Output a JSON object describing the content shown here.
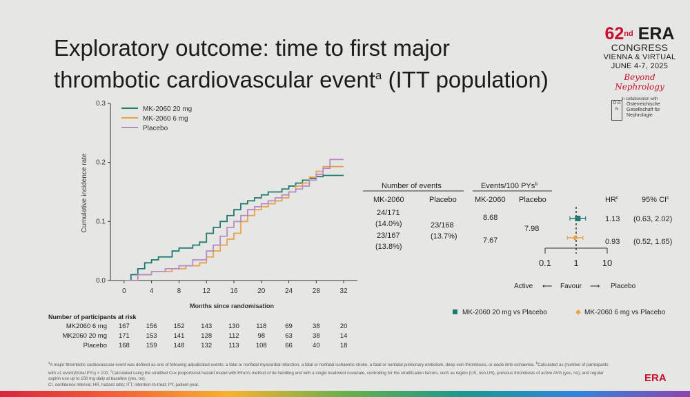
{
  "title": {
    "line1": "Exploratory outcome: time to first major",
    "line2": "thrombotic cardiovascular event",
    "sup": "a",
    "line2_end": " (ITT population)"
  },
  "logo": {
    "edition": "62",
    "edition_suffix": "nd",
    "era": "ERA",
    "congress": "CONGRESS",
    "city": "VIENNA & VIRTUAL",
    "dates": "JUNE 4-7, 2025",
    "tagline": "Beyond Nephrology",
    "collab": "in collaboration with",
    "partner_letters": "Ö G N",
    "partner": "Österreichische Gesellschaft für Nephrologie",
    "bottom": "ERA"
  },
  "km": {
    "ylabel": "Cumulative incidence rate",
    "xlabel": "Months since randomisation",
    "legend": [
      "MK-2060 20 mg",
      "MK-2060 6 mg",
      "Placebo"
    ]
  },
  "chart_data": {
    "type": "line",
    "title": "Time to first major thrombotic cardiovascular event",
    "xlabel": "Months since randomisation",
    "ylabel": "Cumulative incidence rate",
    "x_ticks": [
      0,
      4,
      8,
      12,
      16,
      20,
      24,
      28,
      32
    ],
    "y_ticks": [
      "0.0",
      "0.1",
      "0.2",
      "0.3"
    ],
    "xlim": [
      -2,
      34
    ],
    "ylim": [
      0,
      0.3
    ],
    "series": [
      {
        "name": "MK-2060 20 mg",
        "color": "#1e7a6e",
        "x": [
          0,
          1,
          2,
          3,
          4,
          5,
          7,
          8,
          10,
          11,
          12,
          13,
          14,
          15,
          16,
          17,
          18,
          19,
          20,
          21,
          23,
          24,
          25,
          26,
          27,
          28,
          29,
          30,
          32
        ],
        "y": [
          0,
          0.01,
          0.02,
          0.03,
          0.035,
          0.04,
          0.05,
          0.055,
          0.06,
          0.065,
          0.08,
          0.09,
          0.1,
          0.11,
          0.12,
          0.13,
          0.135,
          0.14,
          0.145,
          0.15,
          0.155,
          0.16,
          0.165,
          0.17,
          0.173,
          0.176,
          0.178,
          0.178,
          0.178
        ]
      },
      {
        "name": "MK-2060 6 mg",
        "color": "#e8a24a",
        "x": [
          0,
          2,
          4,
          7,
          9,
          11,
          12,
          13,
          14,
          15,
          16,
          17,
          18,
          19,
          20,
          21,
          22,
          23,
          24,
          25,
          26,
          27,
          28,
          29,
          30,
          32
        ],
        "y": [
          0,
          0.01,
          0.015,
          0.02,
          0.025,
          0.03,
          0.04,
          0.05,
          0.06,
          0.07,
          0.08,
          0.1,
          0.11,
          0.12,
          0.125,
          0.13,
          0.135,
          0.14,
          0.15,
          0.16,
          0.165,
          0.175,
          0.185,
          0.193,
          0.193,
          0.193
        ]
      },
      {
        "name": "Placebo",
        "color": "#b58cc4",
        "x": [
          0,
          2,
          4,
          6,
          8,
          10,
          12,
          13,
          14,
          15,
          16,
          17,
          18,
          19,
          20,
          21,
          22,
          23,
          24,
          25,
          26,
          27,
          28,
          29,
          30,
          32
        ],
        "y": [
          0,
          0.01,
          0.015,
          0.02,
          0.025,
          0.035,
          0.05,
          0.06,
          0.075,
          0.09,
          0.1,
          0.11,
          0.12,
          0.125,
          0.13,
          0.135,
          0.14,
          0.145,
          0.15,
          0.155,
          0.16,
          0.17,
          0.18,
          0.19,
          0.205,
          0.205
        ]
      }
    ]
  },
  "risk": {
    "title": "Number of participants at risk",
    "rows": [
      {
        "label": "MK2060 6 mg",
        "values": [
          "167",
          "156",
          "152",
          "143",
          "130",
          "118",
          "69",
          "38",
          "20"
        ]
      },
      {
        "label": "MK2060 20 mg",
        "values": [
          "171",
          "153",
          "141",
          "128",
          "112",
          "98",
          "63",
          "38",
          "14"
        ]
      },
      {
        "label": "Placebo",
        "values": [
          "168",
          "159",
          "148",
          "132",
          "113",
          "108",
          "66",
          "40",
          "18"
        ]
      }
    ]
  },
  "table": {
    "hdr_events": "Number of events",
    "hdr_rate": "Events/100 PYs",
    "hdr_rate_sup": "b",
    "hdr_hr": "HR",
    "hdr_hr_sup": "c",
    "hdr_ci": "95% CI",
    "hdr_ci_sup": "c",
    "col_mk": "MK-2060",
    "col_pbo": "Placebo",
    "col_mk2": "MK-2060",
    "col_pbo2": "Placebo",
    "r1_events": "24/171",
    "r1_pct": "(14.0%)",
    "r2_events": "23/167",
    "r2_pct": "(13.8%)",
    "pbo_events": "23/168",
    "pbo_pct": "(13.7%)",
    "r1_rate": "8.68",
    "r2_rate": "7.67",
    "pbo_rate": "7.98",
    "r1_hr": "1.13",
    "r1_ci": "(0.63, 2.02)",
    "r2_hr": "0.93",
    "r2_ci": "(0.52, 1.65)"
  },
  "forest": {
    "ticks": [
      "0.1",
      "1",
      "10"
    ],
    "active": "Active",
    "favour": "Favour",
    "placebo": "Placebo",
    "color_20": "#1e7a6e",
    "color_6": "#e8a24a",
    "r1_hr": 1.13,
    "r1_lo": 0.63,
    "r1_hi": 2.02,
    "r2_hr": 0.93,
    "r2_lo": 0.52,
    "r2_hi": 1.65,
    "legend_20": "MK-2060 20 mg vs Placebo",
    "legend_6": "MK-2060 6 mg vs Placebo"
  },
  "footnote": {
    "a_sup": "a",
    "a_text": "A major thrombotic cardiovascular event was defined as one of following adjudicated events: a fatal or nonfatal myocardial infarction, a fatal or nonfatal ischaemic stroke, a fatal or nonfatal pulmonary embolism, deep vein thrombosis, or acute limb ischaemia.",
    "b_sup": "b",
    "b_text": "Calculated as (number of participants with ≥1 event)/(total PYs) × 100.",
    "c_sup": "c",
    "c_text": "Calculated using the stratified Cox proportional hazard model with Efron's method of tie handling and with a single treatment covariate, controlling for the stratification factors, such as region (US, non-US), previous thrombosis of active AVG (yes, no), and regular aspirin use up to 150 mg daily at baseline (yes, no).",
    "abbr": "CI, confidence interval; HR, hazard ratio; ITT, intention-to-treat; PY, patient-year."
  }
}
